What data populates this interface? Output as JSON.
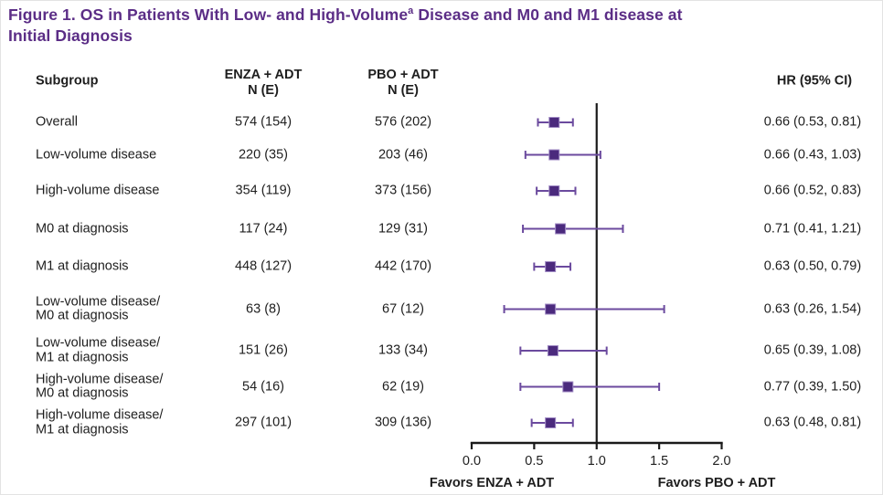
{
  "title": {
    "line1_pre": "Figure 1. OS in Patients With Low- and High-Volume",
    "footnote_marker": "a",
    "line1_post": " Disease and M0 and M1 disease at",
    "line2": "Initial Diagnosis"
  },
  "columns": {
    "subgroup": "Subgroup",
    "enza": [
      "ENZA + ADT",
      "N (E)"
    ],
    "pbo": [
      "PBO + ADT",
      "N (E)"
    ],
    "hr": "HR (95% CI)"
  },
  "colors": {
    "title_text": "#5b2d86",
    "body_text": "#1e1e1e",
    "marker_fill": "#4b2a7d",
    "marker_edge": "#a08bc4",
    "ci_line": "#6b4a9e",
    "axis_line": "#1a1a1a"
  },
  "chart_data": {
    "type": "scatter",
    "variant": "forest-plot",
    "title": "Figure 1. OS in Patients With Low- and High-Volume(a) Disease and M0 and M1 disease at Initial Diagnosis",
    "rows": [
      {
        "subgroup": [
          "Overall"
        ],
        "enza_n_e": "574 (154)",
        "pbo_n_e": "576 (202)",
        "hr": 0.66,
        "ci_low": 0.53,
        "ci_high": 0.81,
        "hr_text": "0.66 (0.53, 0.81)"
      },
      {
        "subgroup": [
          "Low-volume disease"
        ],
        "enza_n_e": "220 (35)",
        "pbo_n_e": "203 (46)",
        "hr": 0.66,
        "ci_low": 0.43,
        "ci_high": 1.03,
        "hr_text": "0.66 (0.43, 1.03)"
      },
      {
        "subgroup": [
          "High-volume disease"
        ],
        "enza_n_e": "354 (119)",
        "pbo_n_e": "373 (156)",
        "hr": 0.66,
        "ci_low": 0.52,
        "ci_high": 0.83,
        "hr_text": "0.66 (0.52, 0.83)"
      },
      {
        "subgroup": [
          "M0 at diagnosis"
        ],
        "enza_n_e": "117 (24)",
        "pbo_n_e": "129 (31)",
        "hr": 0.71,
        "ci_low": 0.41,
        "ci_high": 1.21,
        "hr_text": "0.71 (0.41, 1.21)"
      },
      {
        "subgroup": [
          "M1 at diagnosis"
        ],
        "enza_n_e": "448 (127)",
        "pbo_n_e": "442 (170)",
        "hr": 0.63,
        "ci_low": 0.5,
        "ci_high": 0.79,
        "hr_text": "0.63 (0.50, 0.79)"
      },
      {
        "subgroup": [
          "Low-volume disease/",
          "M0 at diagnosis"
        ],
        "enza_n_e": "63 (8)",
        "pbo_n_e": "67 (12)",
        "hr": 0.63,
        "ci_low": 0.26,
        "ci_high": 1.54,
        "hr_text": "0.63 (0.26, 1.54)"
      },
      {
        "subgroup": [
          "Low-volume disease/",
          "M1 at diagnosis"
        ],
        "enza_n_e": "151 (26)",
        "pbo_n_e": "133 (34)",
        "hr": 0.65,
        "ci_low": 0.39,
        "ci_high": 1.08,
        "hr_text": "0.65 (0.39, 1.08)"
      },
      {
        "subgroup": [
          "High-volume disease/",
          "M0 at diagnosis"
        ],
        "enza_n_e": "54 (16)",
        "pbo_n_e": "62 (19)",
        "hr": 0.77,
        "ci_low": 0.39,
        "ci_high": 1.5,
        "hr_text": "0.77 (0.39, 1.50)"
      },
      {
        "subgroup": [
          "High-volume disease/",
          "M1 at diagnosis"
        ],
        "enza_n_e": "297 (101)",
        "pbo_n_e": "309 (136)",
        "hr": 0.63,
        "ci_low": 0.48,
        "ci_high": 0.81,
        "hr_text": "0.63 (0.48, 0.81)"
      }
    ],
    "axis": {
      "range": [
        0.0,
        2.0
      ],
      "ticks": [
        0.0,
        0.5,
        1.0,
        1.5,
        2.0
      ],
      "tick_labels": [
        "0.0",
        "0.5",
        "1.0",
        "1.5",
        "2.0"
      ],
      "ref_line": 1.0,
      "left_label": "Favors ENZA + ADT",
      "right_label": "Favors PBO + ADT"
    }
  }
}
